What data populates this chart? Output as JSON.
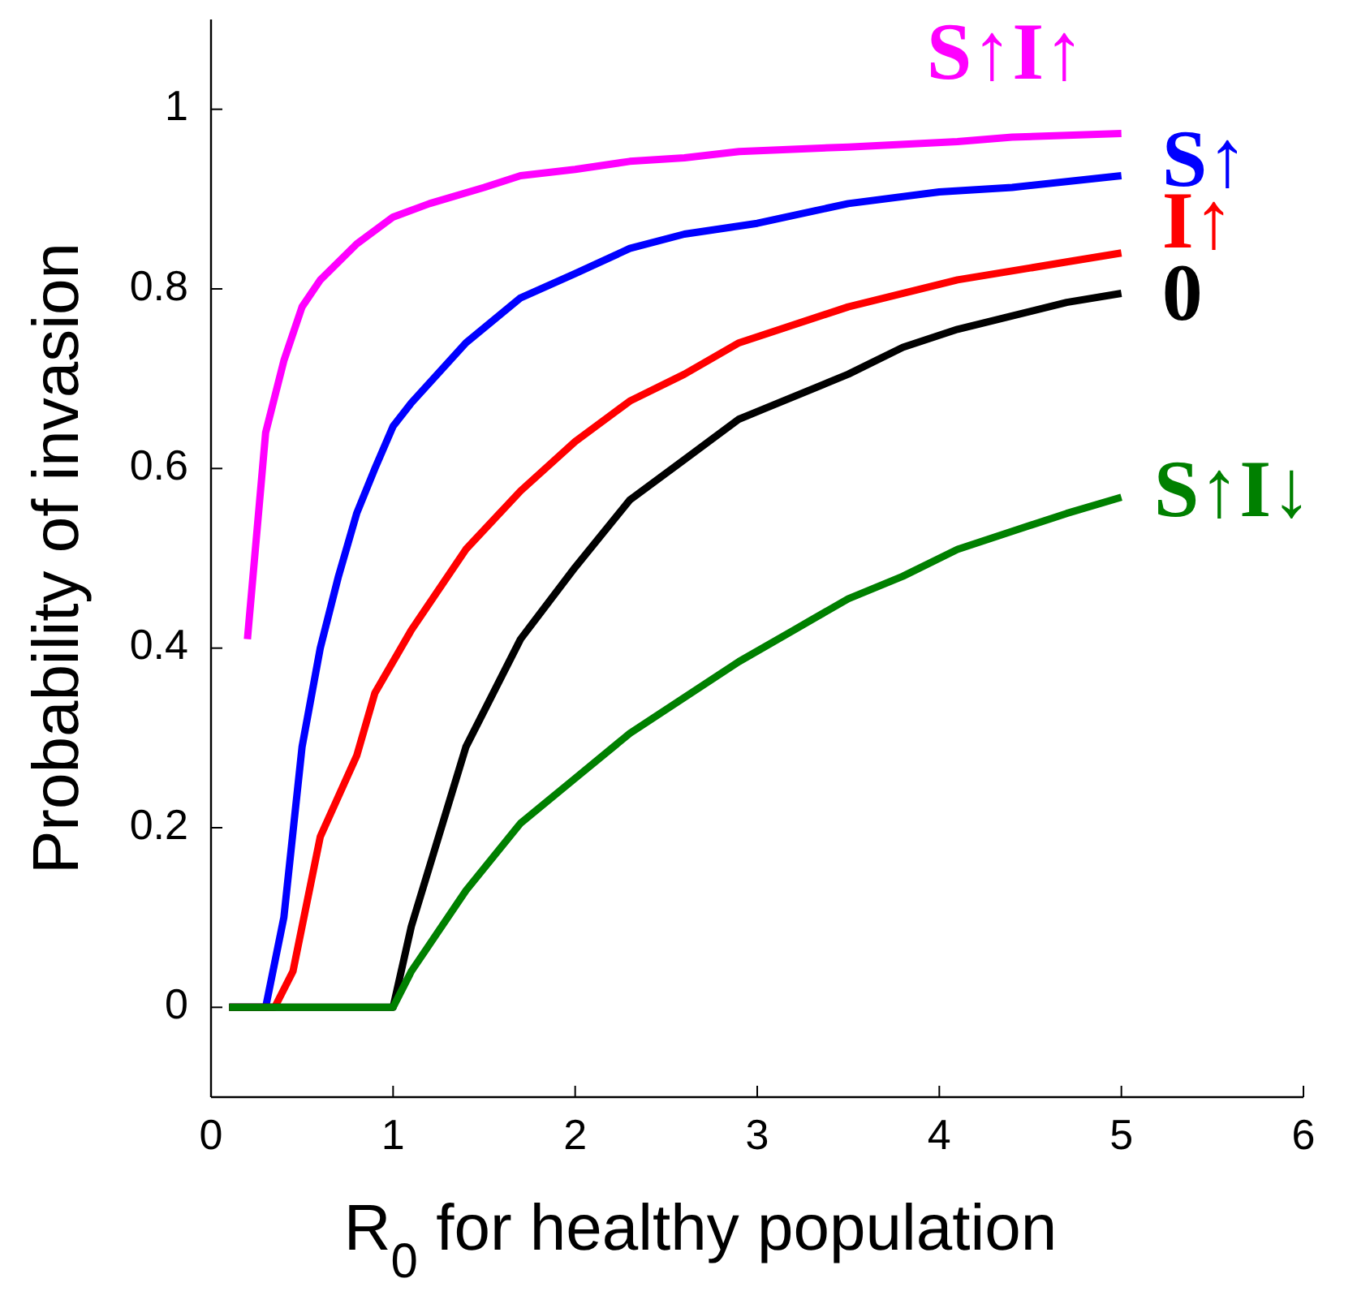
{
  "chart_data": {
    "type": "line",
    "xlabel": "R$_{0}$ for healthy population",
    "ylabel": "Probability of invasion",
    "xlim": [
      0,
      6
    ],
    "ylim": [
      -0.1,
      1.1
    ],
    "xticks": [
      0,
      1,
      2,
      3,
      4,
      5,
      6
    ],
    "yticks": [
      0,
      0.2,
      0.4,
      0.6,
      0.8,
      1
    ],
    "grid": false,
    "legend": false,
    "marker": "none",
    "line_style": "solid",
    "series": [
      {
        "name": "S↑I↑",
        "color": "#ff00ff",
        "x": [
          0.2,
          0.3,
          0.4,
          0.5,
          0.6,
          0.8,
          1.0,
          1.2,
          1.5,
          1.7,
          2,
          2.3,
          2.6,
          2.9,
          3.5,
          4.1,
          4.4,
          5
        ],
        "values": [
          0.41,
          0.64,
          0.72,
          0.78,
          0.81,
          0.85,
          0.88,
          0.895,
          0.913,
          0.926,
          0.933,
          0.942,
          0.946,
          0.953,
          0.958,
          0.964,
          0.969,
          0.973
        ]
      },
      {
        "name": "S↑",
        "color": "#0000ff",
        "x": [
          0.1,
          0.3,
          0.4,
          0.5,
          0.6,
          0.7,
          0.8,
          0.9,
          1.0,
          1.1,
          1.4,
          1.7,
          2,
          2.3,
          2.6,
          3,
          3.5,
          4,
          4.4,
          5
        ],
        "values": [
          0,
          0,
          0.1,
          0.29,
          0.4,
          0.48,
          0.55,
          0.6,
          0.647,
          0.673,
          0.74,
          0.79,
          0.817,
          0.845,
          0.861,
          0.873,
          0.895,
          0.908,
          0.913,
          0.926
        ]
      },
      {
        "name": "I↑",
        "color": "#ff0000",
        "x": [
          0.1,
          0.35,
          0.45,
          0.6,
          0.8,
          0.9,
          1.1,
          1.4,
          1.7,
          2,
          2.3,
          2.6,
          2.9,
          3.5,
          4.1,
          4.7,
          5
        ],
        "values": [
          0,
          0,
          0.04,
          0.19,
          0.28,
          0.35,
          0.42,
          0.51,
          0.575,
          0.63,
          0.675,
          0.705,
          0.74,
          0.78,
          0.81,
          0.83,
          0.84
        ]
      },
      {
        "name": "0",
        "color": "#000000",
        "x": [
          0.1,
          1.0,
          1.1,
          1.4,
          1.7,
          2,
          2.3,
          2.6,
          2.9,
          3.5,
          3.8,
          4.1,
          4.7,
          5
        ],
        "values": [
          0,
          0,
          0.09,
          0.29,
          0.41,
          0.49,
          0.565,
          0.61,
          0.655,
          0.705,
          0.735,
          0.755,
          0.785,
          0.795
        ]
      },
      {
        "name": "S↑I↓",
        "color": "#008000",
        "x": [
          0.1,
          1.0,
          1.1,
          1.4,
          1.7,
          2,
          2.3,
          2.6,
          2.9,
          3.2,
          3.5,
          3.8,
          4.1,
          4.4,
          4.7,
          5
        ],
        "values": [
          0,
          0,
          0.04,
          0.13,
          0.205,
          0.255,
          0.305,
          0.345,
          0.385,
          0.42,
          0.455,
          0.48,
          0.51,
          0.53,
          0.55,
          0.568
        ]
      }
    ]
  }
}
